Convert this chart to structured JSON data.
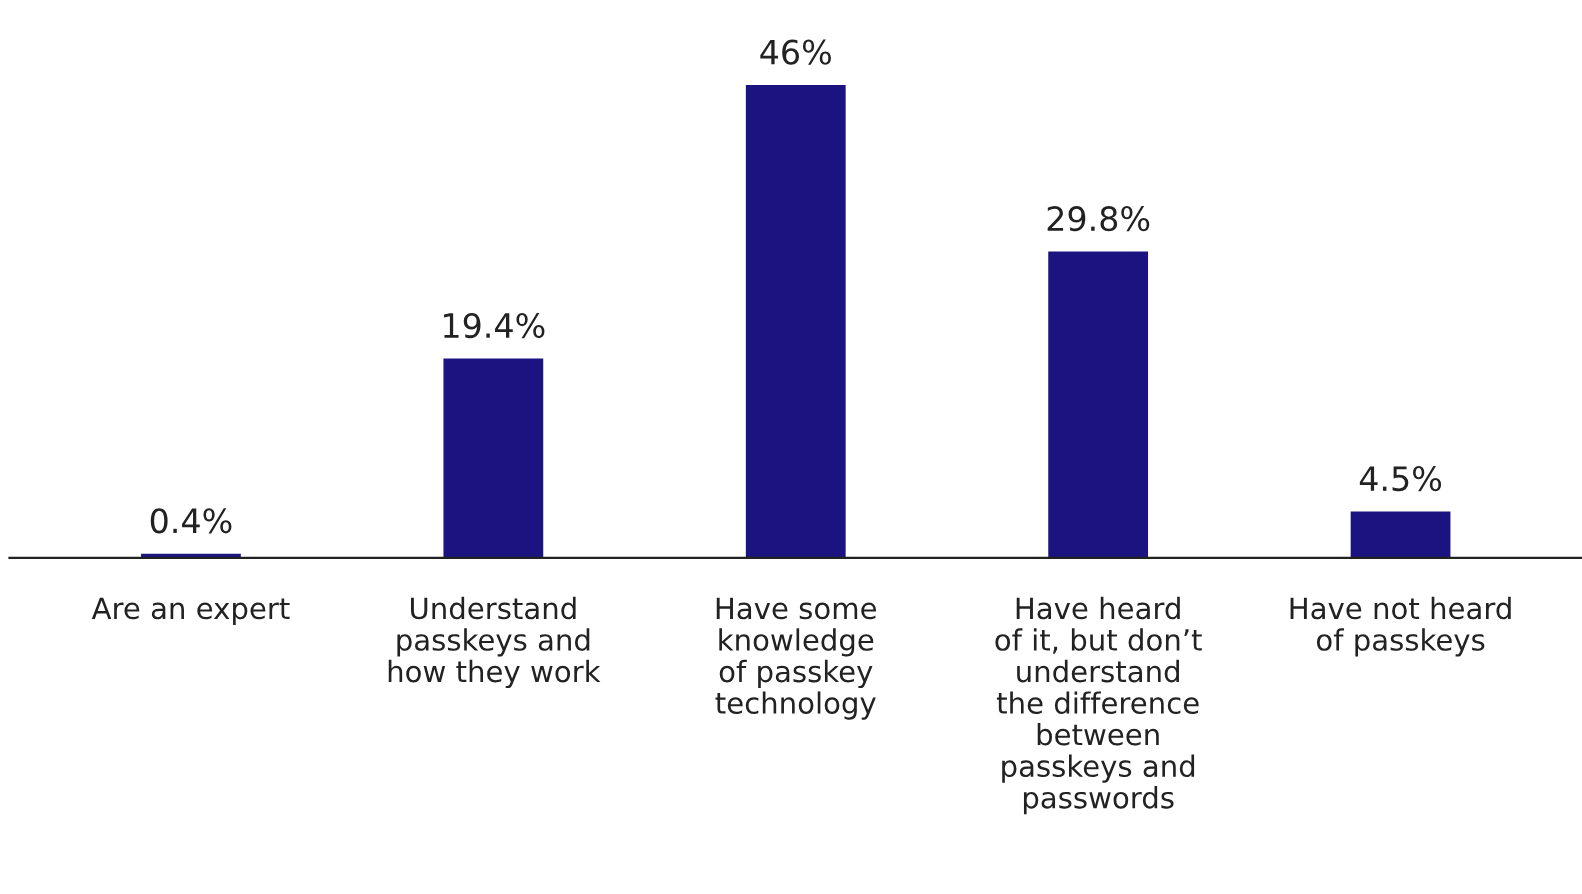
{
  "chart_data": {
    "type": "bar",
    "categories": [
      "Are an expert",
      "Understand\npasskeys and\nhow they work",
      "Have some\nknowledge\nof passkey\ntechnology",
      "Have heard\nof it, but don’t\nunderstand\nthe difference\nbetween\npasskeys and\npasswords",
      "Have not heard\nof passkeys"
    ],
    "values": [
      0.4,
      19.4,
      46,
      29.8,
      4.5
    ],
    "value_labels": [
      "0.4%",
      "19.4%",
      "46%",
      "29.8%",
      "4.5%"
    ],
    "color": "#1b1480",
    "grid": false,
    "legend": false
  }
}
